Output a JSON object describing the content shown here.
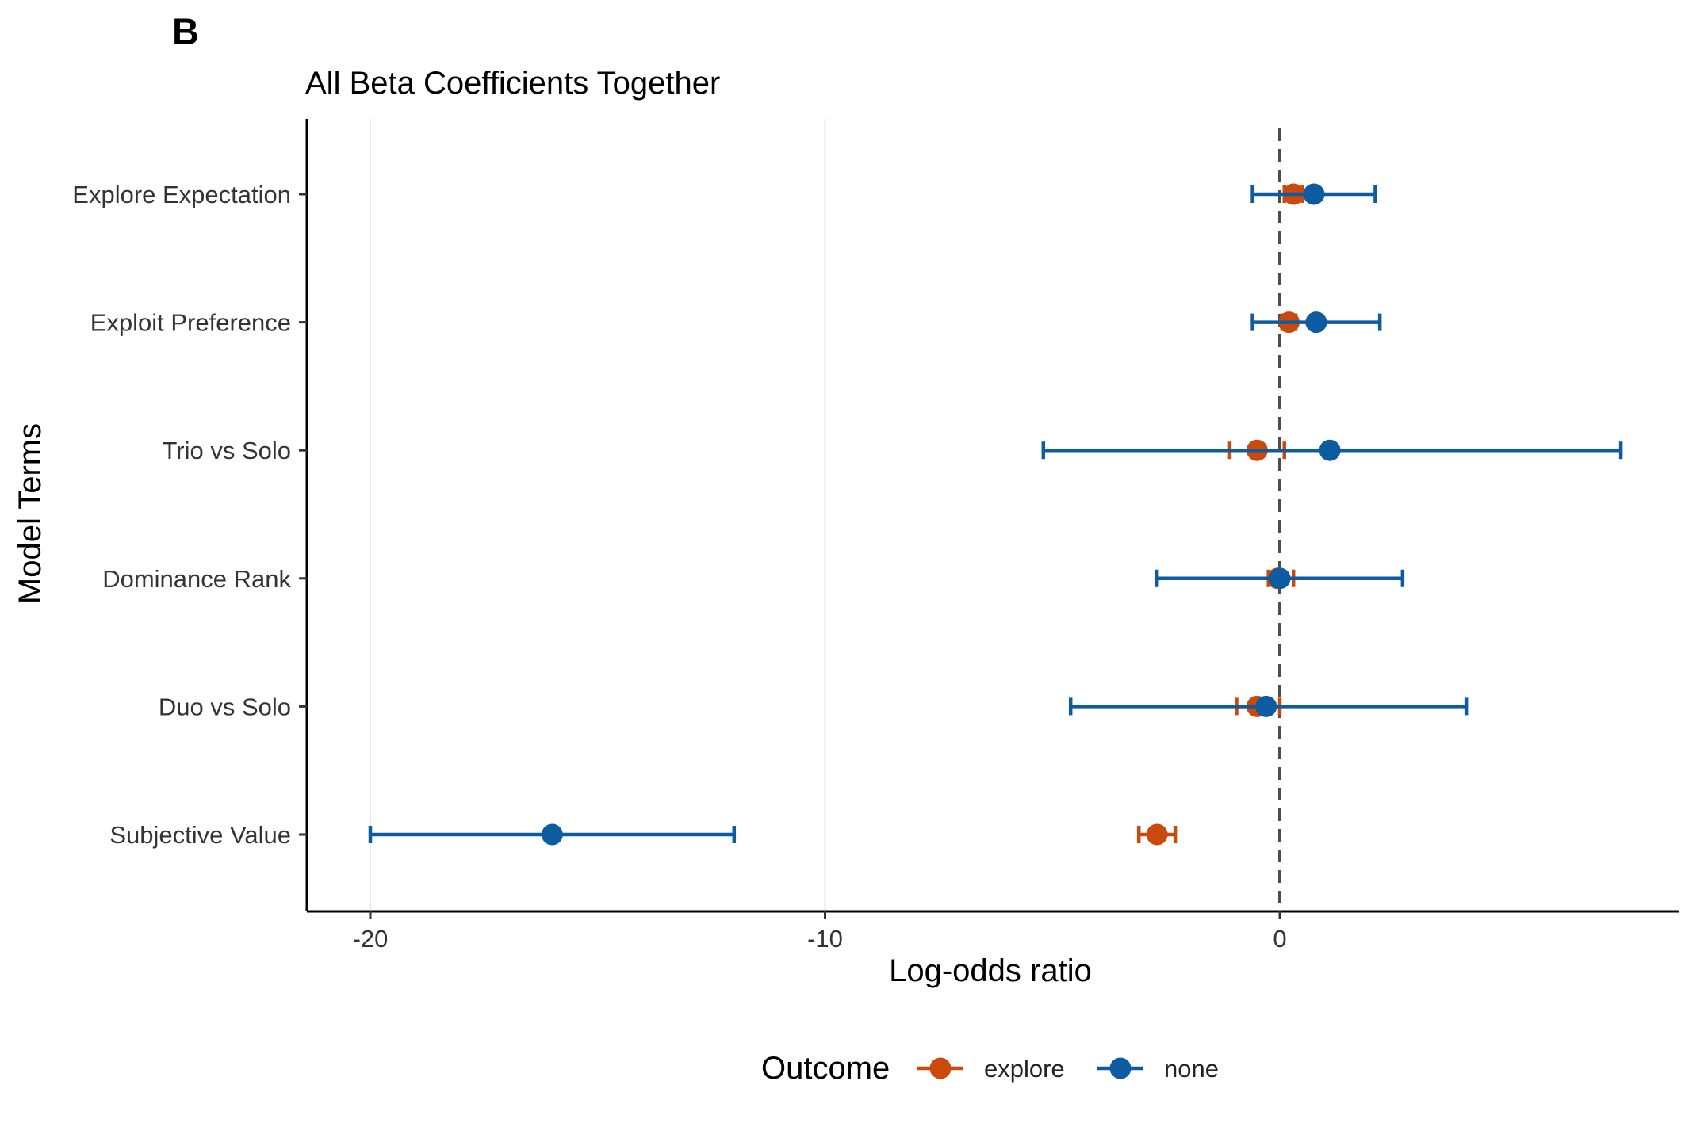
{
  "panel_label": "B",
  "chart_data": {
    "type": "scatter",
    "subtype": "coefficient-plot-with-error-bars",
    "title": "All Beta Coefficients Together",
    "xlabel": "Log-odds ratio",
    "ylabel": "Model Terms",
    "xlim": [
      -21,
      9.2
    ],
    "x_ticks": [
      -20,
      -10,
      0
    ],
    "x_tick_labels": [
      "-20",
      "-10",
      "0"
    ],
    "categories": [
      "Explore Expectation",
      "Exploit Preference",
      "Trio vs Solo",
      "Dominance Rank",
      "Duo vs Solo",
      "Subjective Value"
    ],
    "reference_line": {
      "x": 0,
      "style": "dashed",
      "color": "#4d4d4d"
    },
    "grid": {
      "vertical_major": true,
      "horizontal": false
    },
    "legend": {
      "title": "Outcome",
      "position": "bottom"
    },
    "series": [
      {
        "name": "explore",
        "color": "#C94A0A",
        "estimates": [
          0.3,
          0.2,
          -0.5,
          -0.05,
          -0.5,
          -2.7
        ],
        "lower": [
          0.1,
          0.05,
          -1.1,
          -0.25,
          -0.95,
          -3.1
        ],
        "upper": [
          0.5,
          0.35,
          0.1,
          0.3,
          0.0,
          -2.3
        ]
      },
      {
        "name": "none",
        "color": "#0D5BA1",
        "estimates": [
          0.75,
          0.8,
          1.1,
          0.0,
          -0.3,
          -16.0
        ],
        "lower": [
          -0.6,
          -0.6,
          -5.2,
          -2.7,
          -4.6,
          -20.0
        ],
        "upper": [
          2.1,
          2.2,
          7.5,
          2.7,
          4.1,
          -12.0
        ]
      }
    ]
  }
}
